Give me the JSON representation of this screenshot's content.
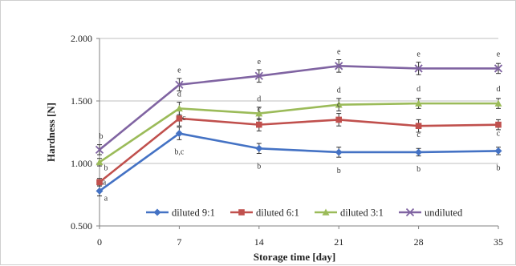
{
  "chart_data": {
    "type": "line",
    "xlabel": "Storage time [day]",
    "ylabel": "Hardness [N]",
    "x": [
      0,
      7,
      14,
      21,
      28,
      35
    ],
    "x_tick_labels": [
      "0",
      "7",
      "14",
      "21",
      "28",
      "35"
    ],
    "ylim": [
      0.5,
      2.0
    ],
    "y_ticks": [
      0.5,
      1.0,
      1.5,
      2.0
    ],
    "y_tick_labels": [
      "0.500",
      "1.000",
      "1.500",
      "2.000"
    ],
    "grid": "horizontal",
    "legend": "bottom-center",
    "series": [
      {
        "name": "diluted 9:1",
        "color": "#4472C4",
        "marker": "diamond",
        "values": [
          0.78,
          1.24,
          1.12,
          1.09,
          1.09,
          1.1
        ],
        "error": [
          0.04,
          0.05,
          0.04,
          0.04,
          0.03,
          0.03
        ],
        "labels": [
          "a",
          "b,c",
          "b",
          "b",
          "b",
          "b"
        ]
      },
      {
        "name": "diluted 6:1",
        "color": "#C0504D",
        "marker": "square",
        "values": [
          0.85,
          1.36,
          1.31,
          1.35,
          1.3,
          1.31
        ],
        "error": [
          0.03,
          0.06,
          0.05,
          0.05,
          0.05,
          0.04
        ],
        "labels": [
          "a",
          "c",
          "c",
          "c",
          "c",
          "c"
        ]
      },
      {
        "name": "diluted 3:1",
        "color": "#9BBB59",
        "marker": "triangle",
        "values": [
          1.01,
          1.44,
          1.4,
          1.47,
          1.48,
          1.48
        ],
        "error": [
          0.03,
          0.05,
          0.05,
          0.05,
          0.04,
          0.04
        ],
        "labels": [
          "b",
          "d",
          "d",
          "d",
          "d",
          "d"
        ]
      },
      {
        "name": "undiluted",
        "color": "#8064A2",
        "marker": "x",
        "values": [
          1.11,
          1.63,
          1.7,
          1.78,
          1.76,
          1.76
        ],
        "error": [
          0.04,
          0.05,
          0.05,
          0.05,
          0.05,
          0.04
        ],
        "labels": [
          "b",
          "e",
          "e",
          "e",
          "e",
          "e"
        ]
      }
    ]
  }
}
